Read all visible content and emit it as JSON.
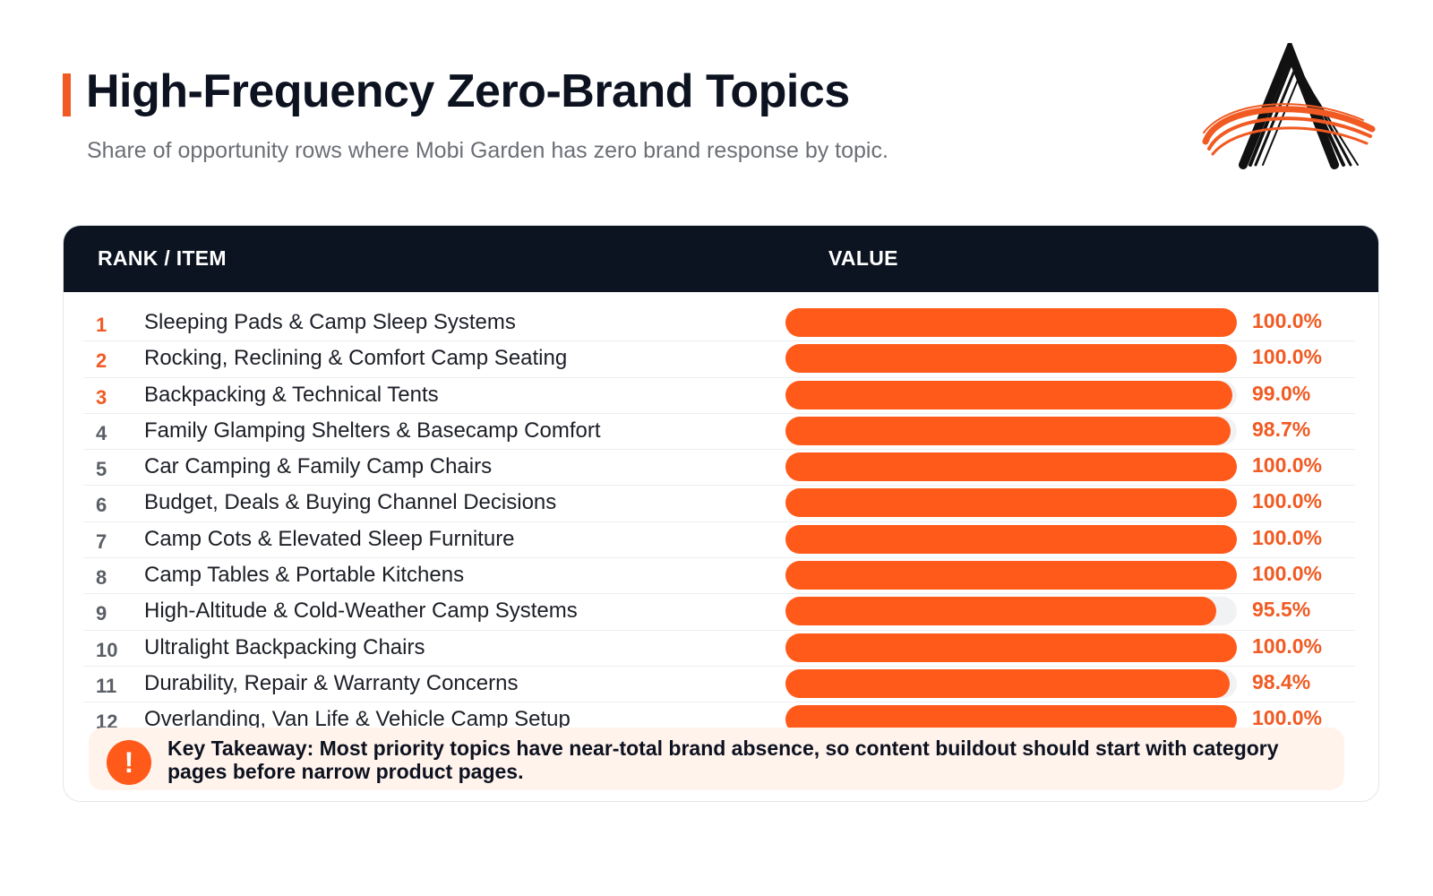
{
  "header": {
    "title": "High-Frequency Zero-Brand Topics",
    "subtitle": "Share of opportunity rows where Mobi Garden has zero brand response by topic."
  },
  "colors": {
    "accent": "#f15a22",
    "bar": "#ff5a1a",
    "header_bg": "#0c1422",
    "track": "#f1f2f4"
  },
  "table": {
    "col_rank_item": "RANK / ITEM",
    "col_value": "VALUE"
  },
  "chart_data": {
    "type": "bar",
    "orientation": "horizontal",
    "title": "High-Frequency Zero-Brand Topics",
    "subtitle": "Share of opportunity rows where Mobi Garden has zero brand response by topic.",
    "xlim": [
      0,
      100
    ],
    "unit": "%",
    "rows": [
      {
        "rank": "1",
        "label": "Sleeping Pads & Camp Sleep Systems",
        "value": 100.0,
        "value_label": "100.0%"
      },
      {
        "rank": "2",
        "label": "Rocking, Reclining & Comfort Camp Seating",
        "value": 100.0,
        "value_label": "100.0%"
      },
      {
        "rank": "3",
        "label": "Backpacking & Technical Tents",
        "value": 99.0,
        "value_label": "99.0%"
      },
      {
        "rank": "4",
        "label": "Family Glamping Shelters & Basecamp Comfort",
        "value": 98.7,
        "value_label": "98.7%"
      },
      {
        "rank": "5",
        "label": "Car Camping & Family Camp Chairs",
        "value": 100.0,
        "value_label": "100.0%"
      },
      {
        "rank": "6",
        "label": "Budget, Deals & Buying Channel Decisions",
        "value": 100.0,
        "value_label": "100.0%"
      },
      {
        "rank": "7",
        "label": "Camp Cots & Elevated Sleep Furniture",
        "value": 100.0,
        "value_label": "100.0%"
      },
      {
        "rank": "8",
        "label": "Camp Tables & Portable Kitchens",
        "value": 100.0,
        "value_label": "100.0%"
      },
      {
        "rank": "9",
        "label": "High-Altitude & Cold-Weather Camp Systems",
        "value": 95.5,
        "value_label": "95.5%"
      },
      {
        "rank": "10",
        "label": "Ultralight Backpacking Chairs",
        "value": 100.0,
        "value_label": "100.0%"
      },
      {
        "rank": "11",
        "label": "Durability, Repair & Warranty Concerns",
        "value": 98.4,
        "value_label": "98.4%"
      },
      {
        "rank": "12",
        "label": "Overlanding, Van Life & Vehicle Camp Setup",
        "value": 100.0,
        "value_label": "100.0%"
      }
    ]
  },
  "takeaway": {
    "icon": "exclamation-icon",
    "text": "Key Takeaway: Most priority topics have near-total brand absence, so content buildout should start with category pages before narrow product pages."
  },
  "logo": {
    "icon": "stylized-a-logo"
  }
}
